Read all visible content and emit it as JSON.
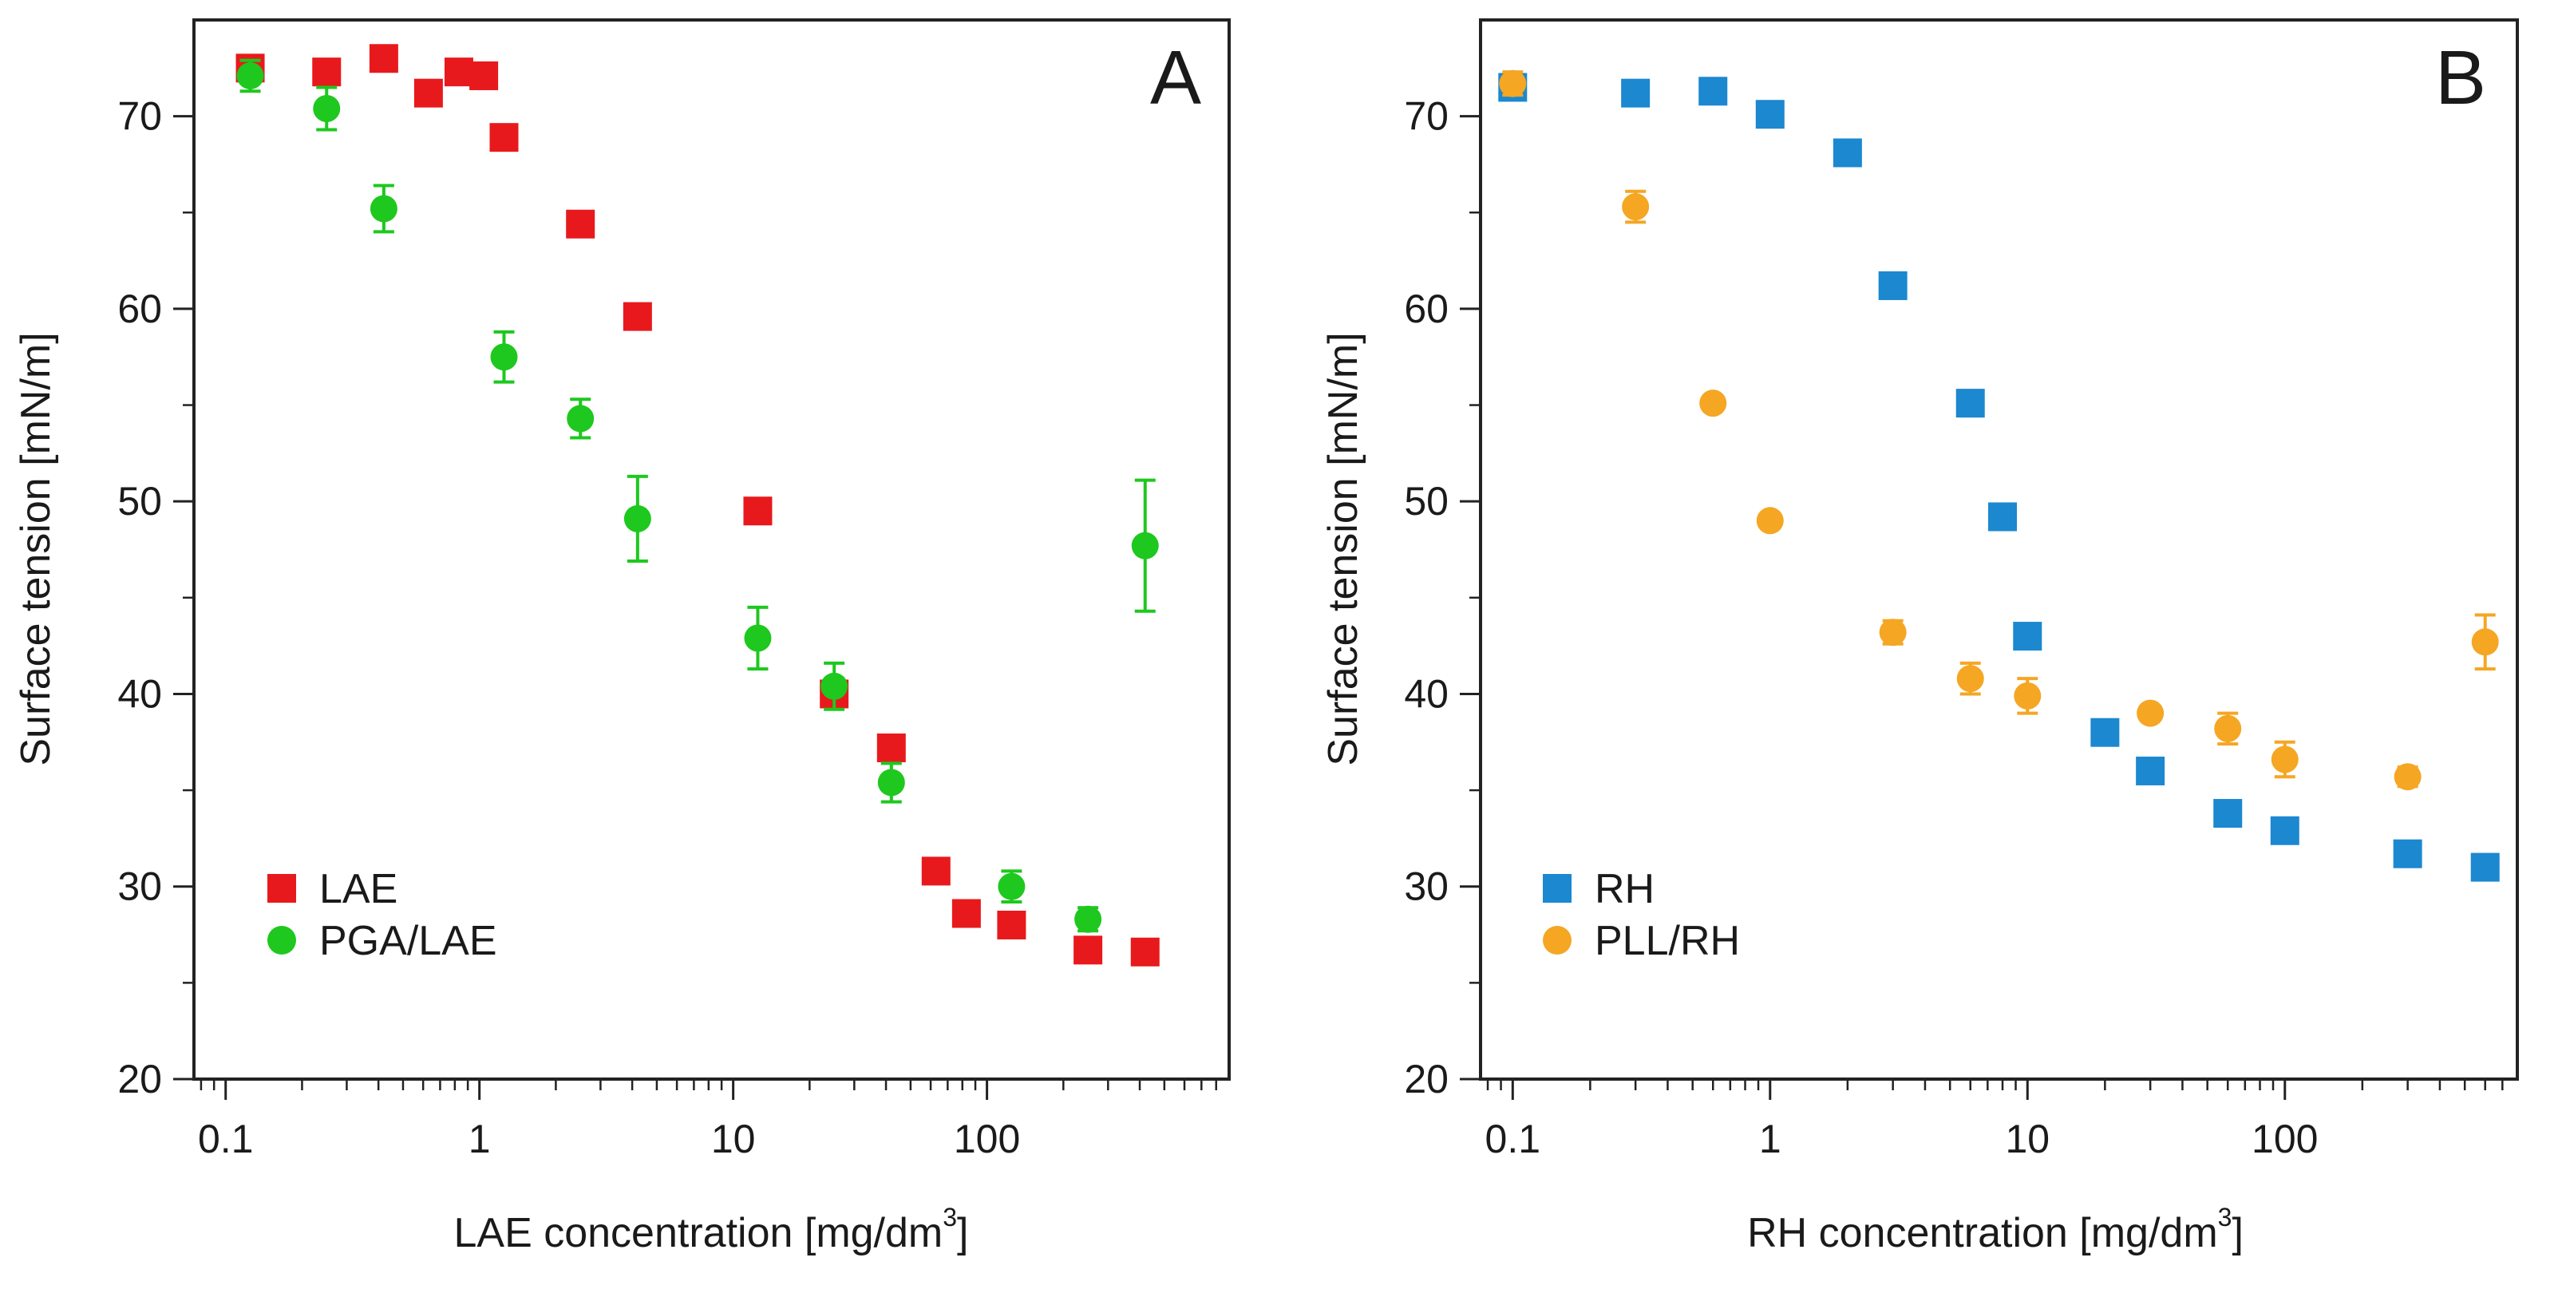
{
  "chart_data": [
    {
      "type": "scatter",
      "panel_label": "A",
      "xscale": "log",
      "xlabel": "LAE concentration [mg/dm",
      "xlabel_superscript": "3",
      "xlabel_suffix": "]",
      "ylabel": "Surface tension [mN/m]",
      "xlim": [
        0.075,
        900
      ],
      "ylim": [
        20,
        75
      ],
      "xticks": [
        0.1,
        1,
        10,
        100
      ],
      "xtick_labels": [
        "0.1",
        "1",
        "10",
        "100"
      ],
      "yticks": [
        20,
        30,
        40,
        50,
        60,
        70
      ],
      "ytick_labels": [
        "20",
        "30",
        "40",
        "50",
        "60",
        "70"
      ],
      "legend_position": "bottom-left",
      "series": [
        {
          "name": "LAE",
          "marker": "square",
          "color": "#e8191c",
          "points": [
            {
              "x": 0.125,
              "y": 72.5
            },
            {
              "x": 0.25,
              "y": 72.3
            },
            {
              "x": 0.42,
              "y": 73.0
            },
            {
              "x": 0.63,
              "y": 71.2
            },
            {
              "x": 0.83,
              "y": 72.3
            },
            {
              "x": 1.04,
              "y": 72.1
            },
            {
              "x": 1.25,
              "y": 68.9
            },
            {
              "x": 2.5,
              "y": 64.4
            },
            {
              "x": 4.2,
              "y": 59.6
            },
            {
              "x": 12.5,
              "y": 49.5
            },
            {
              "x": 25,
              "y": 40.0
            },
            {
              "x": 42,
              "y": 37.2
            },
            {
              "x": 63,
              "y": 30.8
            },
            {
              "x": 83,
              "y": 28.6
            },
            {
              "x": 125,
              "y": 28.0
            },
            {
              "x": 250,
              "y": 26.7
            },
            {
              "x": 420,
              "y": 26.6
            }
          ]
        },
        {
          "name": "PGA/LAE",
          "marker": "circle",
          "color": "#1ec81e",
          "points": [
            {
              "x": 0.125,
              "y": 72.1,
              "err": 0.8
            },
            {
              "x": 0.25,
              "y": 70.4,
              "err": 1.1
            },
            {
              "x": 0.42,
              "y": 65.2,
              "err": 1.2
            },
            {
              "x": 1.25,
              "y": 57.5,
              "err": 1.3
            },
            {
              "x": 2.5,
              "y": 54.3,
              "err": 1.0
            },
            {
              "x": 4.2,
              "y": 49.1,
              "err": 2.2
            },
            {
              "x": 12.5,
              "y": 42.9,
              "err": 1.6
            },
            {
              "x": 25,
              "y": 40.4,
              "err": 1.2
            },
            {
              "x": 42,
              "y": 35.4,
              "err": 1.0
            },
            {
              "x": 125,
              "y": 30.0,
              "err": 0.8
            },
            {
              "x": 250,
              "y": 28.3,
              "err": 0.6
            },
            {
              "x": 420,
              "y": 47.7,
              "err": 3.4
            }
          ]
        }
      ]
    },
    {
      "type": "scatter",
      "panel_label": "B",
      "xscale": "log",
      "xlabel": "RH concentration [mg/dm",
      "xlabel_superscript": "3",
      "xlabel_suffix": "]",
      "ylabel": "Surface tension [mN/m]",
      "xlim": [
        0.075,
        800
      ],
      "ylim": [
        20,
        75
      ],
      "xticks": [
        0.1,
        1,
        10,
        100
      ],
      "xtick_labels": [
        "0.1",
        "1",
        "10",
        "100"
      ],
      "yticks": [
        20,
        30,
        40,
        50,
        60,
        70
      ],
      "ytick_labels": [
        "20",
        "30",
        "40",
        "50",
        "60",
        "70"
      ],
      "legend_position": "bottom-left",
      "series": [
        {
          "name": "RH",
          "marker": "square",
          "color": "#1b88d0",
          "points": [
            {
              "x": 0.1,
              "y": 71.5
            },
            {
              "x": 0.3,
              "y": 71.2
            },
            {
              "x": 0.6,
              "y": 71.3
            },
            {
              "x": 1,
              "y": 70.1
            },
            {
              "x": 2,
              "y": 68.1
            },
            {
              "x": 3,
              "y": 61.2
            },
            {
              "x": 6,
              "y": 55.1
            },
            {
              "x": 8,
              "y": 49.2
            },
            {
              "x": 10,
              "y": 43.0
            },
            {
              "x": 20,
              "y": 38.0
            },
            {
              "x": 30,
              "y": 36.0
            },
            {
              "x": 60,
              "y": 33.8
            },
            {
              "x": 100,
              "y": 32.9
            },
            {
              "x": 300,
              "y": 31.7
            },
            {
              "x": 600,
              "y": 31.0
            }
          ]
        },
        {
          "name": "PLL/RH",
          "marker": "circle",
          "color": "#f5a623",
          "points": [
            {
              "x": 0.1,
              "y": 71.7,
              "err": 0.6
            },
            {
              "x": 0.3,
              "y": 65.3,
              "err": 0.8
            },
            {
              "x": 0.6,
              "y": 55.1,
              "err": 0
            },
            {
              "x": 1,
              "y": 49.0,
              "err": 0
            },
            {
              "x": 3,
              "y": 43.2,
              "err": 0.6
            },
            {
              "x": 6,
              "y": 40.8,
              "err": 0.8
            },
            {
              "x": 10,
              "y": 39.9,
              "err": 0.9
            },
            {
              "x": 30,
              "y": 39.0,
              "err": 0
            },
            {
              "x": 60,
              "y": 38.2,
              "err": 0.8
            },
            {
              "x": 100,
              "y": 36.6,
              "err": 0.9
            },
            {
              "x": 300,
              "y": 35.7,
              "err": 0.5
            },
            {
              "x": 600,
              "y": 42.7,
              "err": 1.4
            }
          ]
        }
      ]
    }
  ]
}
